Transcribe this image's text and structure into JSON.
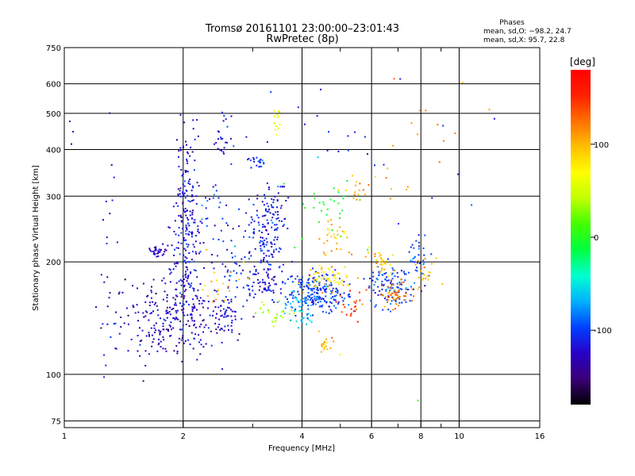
{
  "chart_data": {
    "type": "scatter",
    "title": "Tromsø 20161101 23:00:00–23:01:43",
    "subtitle": "RwPretec (8p)",
    "xlabel": "Frequency [MHz]",
    "ylabel": "Stationary phase Virtual Height [km]",
    "x_scale": "log",
    "y_scale": "log",
    "xlim": [
      1,
      16
    ],
    "ylim": [
      72,
      750
    ],
    "x_ticks": [
      1,
      2,
      4,
      6,
      8,
      10,
      16
    ],
    "x_minor_ticks": [
      3,
      5,
      7,
      9
    ],
    "y_ticks": [
      75,
      100,
      200,
      300,
      400,
      500,
      600,
      750
    ],
    "grid": true,
    "phase_stats": {
      "heading": "Phases",
      "line1": "mean, sd,O: −98.2, 24.7",
      "line2": "mean, sd,X:  95.7, 22.8"
    },
    "colorbar": {
      "label": "[deg]",
      "range": [
        -180,
        180
      ],
      "ticks": [
        100,
        0,
        -100
      ],
      "colors": [
        "#000000",
        "#3a0078",
        "#2800c8",
        "#0040ff",
        "#00b0ff",
        "#00ffd0",
        "#00ff40",
        "#40ff00",
        "#c0ff00",
        "#ffff00",
        "#ffc000",
        "#ff7000",
        "#ff2000",
        "#ff0000"
      ]
    },
    "clusters": [
      {
        "f": 1.8,
        "h": 140,
        "df": 0.16,
        "dh": 0.12,
        "p": -128,
        "n": 240
      },
      {
        "f": 2.02,
        "h": 210,
        "df": 0.05,
        "dh": 0.22,
        "p": -120,
        "n": 160
      },
      {
        "f": 2.05,
        "h": 330,
        "df": 0.03,
        "dh": 0.18,
        "p": -118,
        "n": 80
      },
      {
        "f": 1.73,
        "h": 212,
        "df": 0.03,
        "dh": 0.02,
        "p": -125,
        "n": 30
      },
      {
        "f": 2.55,
        "h": 145,
        "df": 0.06,
        "dh": 0.06,
        "p": -120,
        "n": 60
      },
      {
        "f": 2.7,
        "h": 195,
        "df": 0.05,
        "dh": 0.12,
        "p": -110,
        "n": 40
      },
      {
        "f": 2.4,
        "h": 260,
        "df": 0.05,
        "dh": 0.12,
        "p": -100,
        "n": 30
      },
      {
        "f": 2.55,
        "h": 420,
        "df": 0.03,
        "dh": 0.08,
        "p": -105,
        "n": 25
      },
      {
        "f": 3.25,
        "h": 230,
        "df": 0.05,
        "dh": 0.14,
        "p": -112,
        "n": 130
      },
      {
        "f": 3.2,
        "h": 175,
        "df": 0.05,
        "dh": 0.05,
        "p": -118,
        "n": 60
      },
      {
        "f": 3.1,
        "h": 370,
        "df": 0.03,
        "dh": 0.02,
        "p": -108,
        "n": 20
      },
      {
        "f": 3.5,
        "h": 280,
        "df": 0.03,
        "dh": 0.08,
        "p": -115,
        "n": 30
      },
      {
        "f": 3.45,
        "h": 480,
        "df": 0.02,
        "dh": 0.04,
        "p": 60,
        "n": 14
      },
      {
        "f": 4.4,
        "h": 165,
        "df": 0.09,
        "dh": 0.06,
        "p": -98,
        "n": 220
      },
      {
        "f": 4.6,
        "h": 180,
        "df": 0.07,
        "dh": 0.04,
        "p": 85,
        "n": 60
      },
      {
        "f": 4.8,
        "h": 230,
        "df": 0.05,
        "dh": 0.06,
        "p": 98,
        "n": 30
      },
      {
        "f": 4.7,
        "h": 120,
        "df": 0.04,
        "dh": 0.03,
        "p": 100,
        "n": 20
      },
      {
        "f": 5.3,
        "h": 155,
        "df": 0.05,
        "dh": 0.05,
        "p": 142,
        "n": 25
      },
      {
        "f": 6.7,
        "h": 175,
        "df": 0.07,
        "dh": 0.07,
        "p": -100,
        "n": 110
      },
      {
        "f": 6.9,
        "h": 165,
        "df": 0.05,
        "dh": 0.05,
        "p": 125,
        "n": 55
      },
      {
        "f": 6.4,
        "h": 200,
        "df": 0.05,
        "dh": 0.04,
        "p": 95,
        "n": 35
      },
      {
        "f": 7.9,
        "h": 200,
        "df": 0.04,
        "dh": 0.08,
        "p": -100,
        "n": 35
      },
      {
        "f": 8.3,
        "h": 190,
        "df": 0.03,
        "dh": 0.05,
        "p": 105,
        "n": 20
      },
      {
        "f": 5.8,
        "h": 320,
        "df": 0.08,
        "dh": 0.06,
        "p": 108,
        "n": 20
      },
      {
        "f": 4.8,
        "h": 280,
        "df": 0.1,
        "dh": 0.12,
        "p": -10,
        "n": 30
      },
      {
        "f": 3.4,
        "h": 145,
        "df": 0.06,
        "dh": 0.05,
        "p": 30,
        "n": 25
      },
      {
        "f": 2.5,
        "h": 180,
        "df": 0.06,
        "dh": 0.1,
        "p": 95,
        "n": 20
      },
      {
        "f": 4.0,
        "h": 145,
        "df": 0.05,
        "dh": 0.06,
        "p": -65,
        "n": 40
      },
      {
        "f": 1.3,
        "h": 220,
        "df": 0.03,
        "dh": 0.4,
        "p": -110,
        "n": 18
      },
      {
        "f": 5.5,
        "h": 400,
        "df": 0.35,
        "dh": 0.25,
        "p": -105,
        "n": 25
      },
      {
        "f": 8.0,
        "h": 400,
        "df": 0.2,
        "dh": 0.25,
        "p": 115,
        "n": 12
      },
      {
        "f": 1.05,
        "h": 420,
        "df": 0.02,
        "dh": 0.08,
        "p": -115,
        "n": 3
      },
      {
        "f": 7.8,
        "h": 85,
        "df": 0.01,
        "dh": 0.01,
        "p": 10,
        "n": 1
      },
      {
        "f": 10.2,
        "h": 615,
        "df": 0.01,
        "dh": 0.01,
        "p": 120,
        "n": 1
      },
      {
        "f": 12.0,
        "h": 510,
        "df": 0.01,
        "dh": 0.01,
        "p": 115,
        "n": 1
      }
    ]
  }
}
